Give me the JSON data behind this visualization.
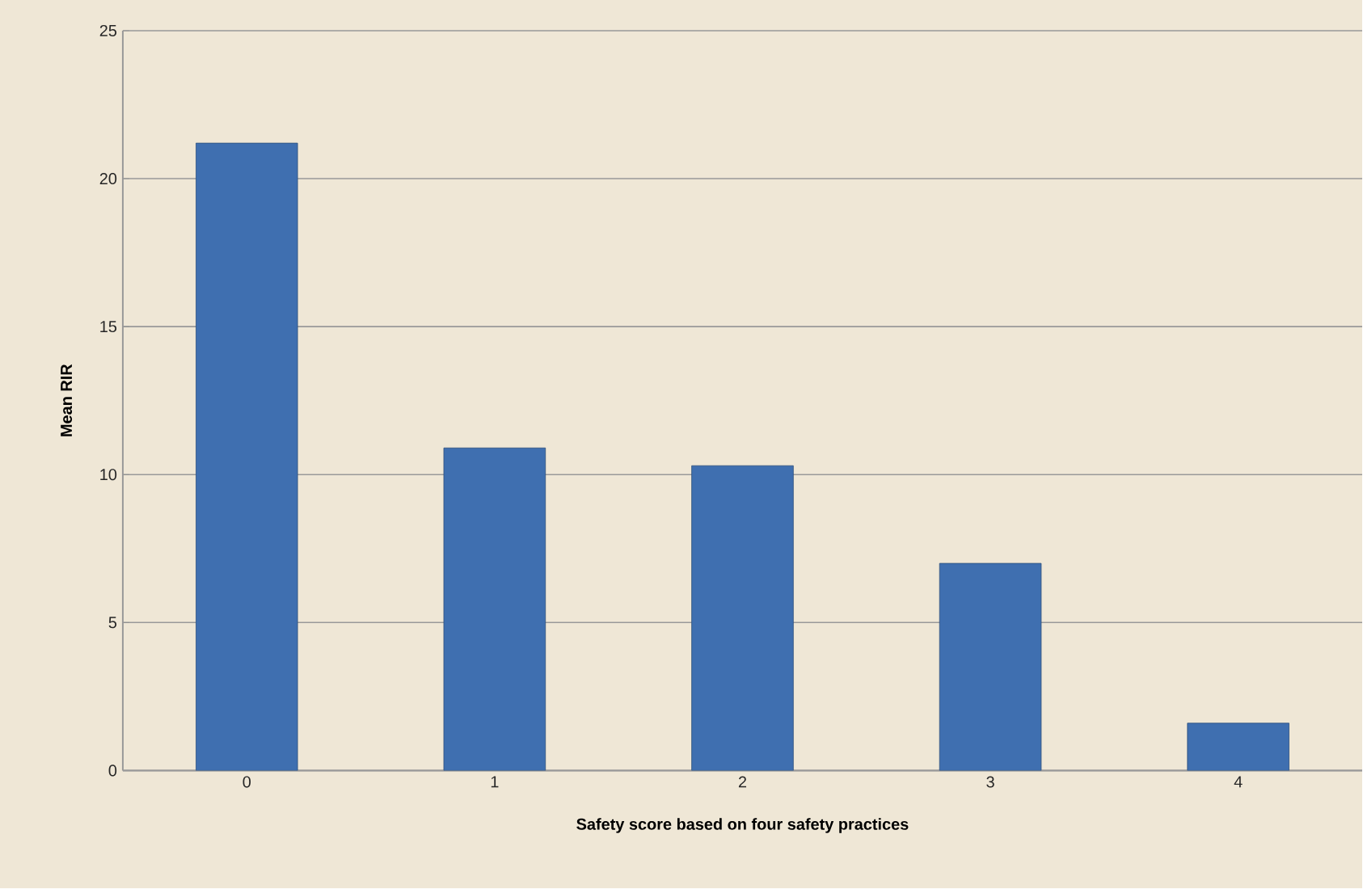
{
  "chart_data": {
    "type": "bar",
    "xlabel": "Safety score based on four safety practices",
    "ylabel": "Mean RIR",
    "categories": [
      "0",
      "1",
      "2",
      "3",
      "4"
    ],
    "values": [
      21.2,
      10.9,
      10.3,
      7.0,
      1.6
    ],
    "color": "#3f6fb0",
    "ylim": [
      0,
      25
    ],
    "yticks": [
      0,
      5,
      10,
      15,
      20,
      25
    ],
    "grid": "y"
  }
}
